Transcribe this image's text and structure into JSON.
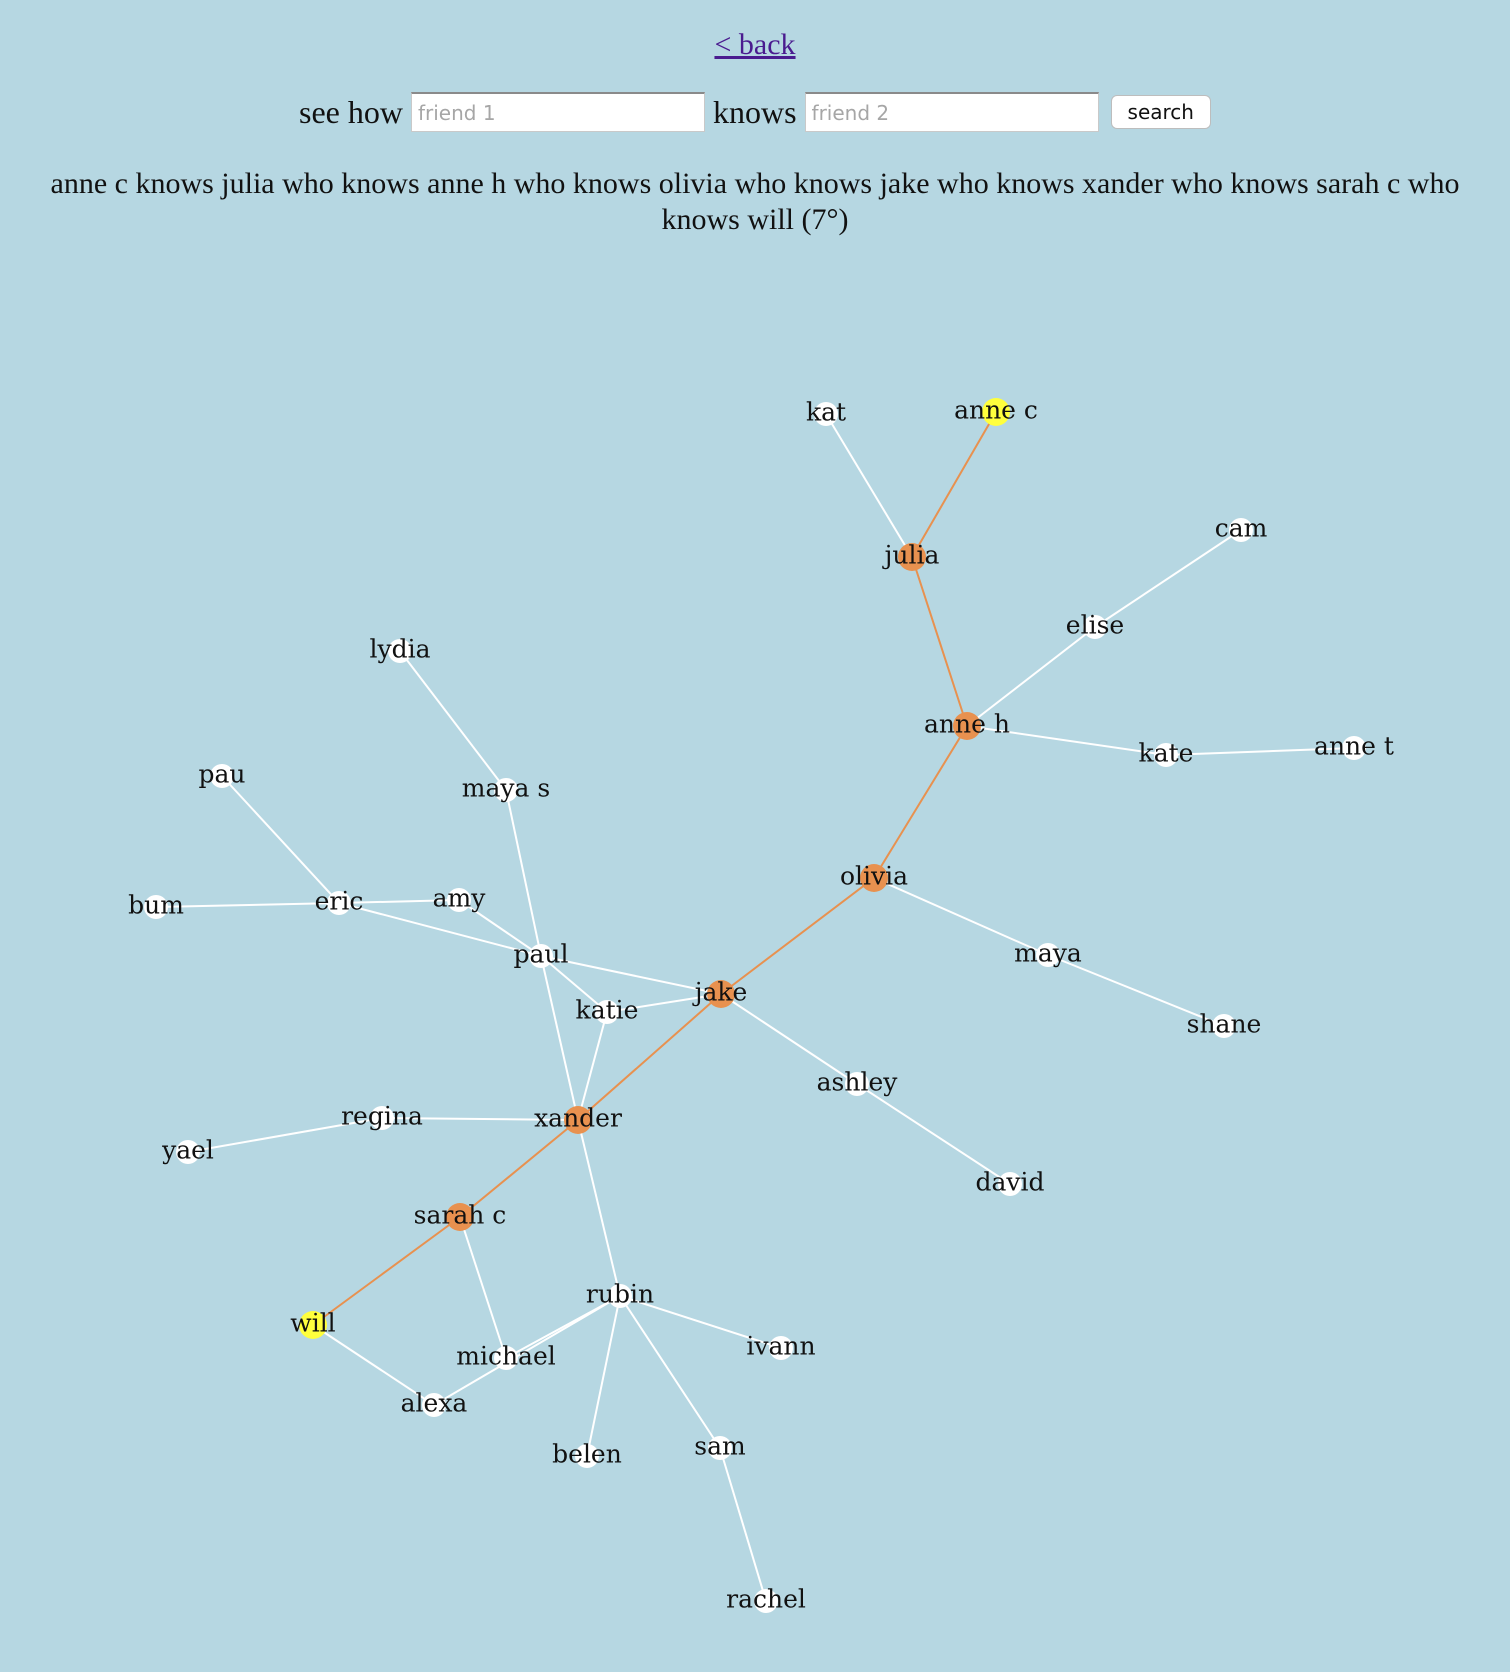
{
  "nav": {
    "back_label": "< back"
  },
  "search": {
    "prefix": "see how",
    "friend1_placeholder": "friend 1",
    "middle": "knows",
    "friend2_placeholder": "friend 2",
    "button_label": "search"
  },
  "result": {
    "text": "anne c knows julia who knows anne h who knows olivia who knows jake who knows xander who knows sarah c who knows will (7°)"
  },
  "colors": {
    "background": "#b6d7e2",
    "node_default": "#ffffff",
    "node_path": "#e8914f",
    "node_endpoint": "#ffff3d",
    "edge_default": "#ffffff",
    "edge_path": "#e8914f",
    "link": "#4a1b8f"
  },
  "graph": {
    "nodes": [
      {
        "id": "kat",
        "label": "kat",
        "status": "default"
      },
      {
        "id": "anne c",
        "label": "anne c",
        "status": "endpoint"
      },
      {
        "id": "julia",
        "label": "julia",
        "status": "path"
      },
      {
        "id": "cam",
        "label": "cam",
        "status": "default"
      },
      {
        "id": "elise",
        "label": "elise",
        "status": "default"
      },
      {
        "id": "anne h",
        "label": "anne h",
        "status": "path"
      },
      {
        "id": "kate",
        "label": "kate",
        "status": "default"
      },
      {
        "id": "anne t",
        "label": "anne t",
        "status": "default"
      },
      {
        "id": "lydia",
        "label": "lydia",
        "status": "default"
      },
      {
        "id": "pau",
        "label": "pau",
        "status": "default"
      },
      {
        "id": "maya s",
        "label": "maya s",
        "status": "default"
      },
      {
        "id": "olivia",
        "label": "olivia",
        "status": "path"
      },
      {
        "id": "bum",
        "label": "bum",
        "status": "default"
      },
      {
        "id": "eric",
        "label": "eric",
        "status": "default"
      },
      {
        "id": "amy",
        "label": "amy",
        "status": "default"
      },
      {
        "id": "maya",
        "label": "maya",
        "status": "default"
      },
      {
        "id": "paul",
        "label": "paul",
        "status": "default"
      },
      {
        "id": "jake",
        "label": "jake",
        "status": "path"
      },
      {
        "id": "katie",
        "label": "katie",
        "status": "default"
      },
      {
        "id": "shane",
        "label": "shane",
        "status": "default"
      },
      {
        "id": "ashley",
        "label": "ashley",
        "status": "default"
      },
      {
        "id": "regina",
        "label": "regina",
        "status": "default"
      },
      {
        "id": "xander",
        "label": "xander",
        "status": "path"
      },
      {
        "id": "yael",
        "label": "yael",
        "status": "default"
      },
      {
        "id": "david",
        "label": "david",
        "status": "default"
      },
      {
        "id": "sarah c",
        "label": "sarah c",
        "status": "path"
      },
      {
        "id": "rubin",
        "label": "rubin",
        "status": "default"
      },
      {
        "id": "will",
        "label": "will",
        "status": "endpoint"
      },
      {
        "id": "ivann",
        "label": "ivann",
        "status": "default"
      },
      {
        "id": "michael",
        "label": "michael",
        "status": "default"
      },
      {
        "id": "alexa",
        "label": "alexa",
        "status": "default"
      },
      {
        "id": "belen",
        "label": "belen",
        "status": "default"
      },
      {
        "id": "sam",
        "label": "sam",
        "status": "default"
      },
      {
        "id": "rachel",
        "label": "rachel",
        "status": "default"
      }
    ],
    "edges": [
      {
        "source": "kat",
        "target": "julia",
        "on_path": false
      },
      {
        "source": "anne c",
        "target": "julia",
        "on_path": true
      },
      {
        "source": "julia",
        "target": "anne h",
        "on_path": true
      },
      {
        "source": "cam",
        "target": "elise",
        "on_path": false
      },
      {
        "source": "elise",
        "target": "anne h",
        "on_path": false
      },
      {
        "source": "anne h",
        "target": "kate",
        "on_path": false
      },
      {
        "source": "kate",
        "target": "anne t",
        "on_path": false
      },
      {
        "source": "anne h",
        "target": "olivia",
        "on_path": true
      },
      {
        "source": "lydia",
        "target": "maya s",
        "on_path": false
      },
      {
        "source": "maya s",
        "target": "paul",
        "on_path": false
      },
      {
        "source": "pau",
        "target": "eric",
        "on_path": false
      },
      {
        "source": "bum",
        "target": "eric",
        "on_path": false
      },
      {
        "source": "eric",
        "target": "amy",
        "on_path": false
      },
      {
        "source": "eric",
        "target": "paul",
        "on_path": false
      },
      {
        "source": "amy",
        "target": "paul",
        "on_path": false
      },
      {
        "source": "paul",
        "target": "jake",
        "on_path": false
      },
      {
        "source": "paul",
        "target": "katie",
        "on_path": false
      },
      {
        "source": "paul",
        "target": "xander",
        "on_path": false
      },
      {
        "source": "katie",
        "target": "jake",
        "on_path": false
      },
      {
        "source": "katie",
        "target": "xander",
        "on_path": false
      },
      {
        "source": "olivia",
        "target": "jake",
        "on_path": true
      },
      {
        "source": "olivia",
        "target": "maya",
        "on_path": false
      },
      {
        "source": "maya",
        "target": "shane",
        "on_path": false
      },
      {
        "source": "jake",
        "target": "ashley",
        "on_path": false
      },
      {
        "source": "ashley",
        "target": "david",
        "on_path": false
      },
      {
        "source": "jake",
        "target": "xander",
        "on_path": true
      },
      {
        "source": "regina",
        "target": "xander",
        "on_path": false
      },
      {
        "source": "yael",
        "target": "regina",
        "on_path": false
      },
      {
        "source": "xander",
        "target": "sarah c",
        "on_path": true
      },
      {
        "source": "xander",
        "target": "rubin",
        "on_path": false
      },
      {
        "source": "sarah c",
        "target": "will",
        "on_path": true
      },
      {
        "source": "sarah c",
        "target": "michael",
        "on_path": false
      },
      {
        "source": "will",
        "target": "alexa",
        "on_path": false
      },
      {
        "source": "alexa",
        "target": "rubin",
        "on_path": false
      },
      {
        "source": "michael",
        "target": "rubin",
        "on_path": false
      },
      {
        "source": "rubin",
        "target": "ivann",
        "on_path": false
      },
      {
        "source": "rubin",
        "target": "belen",
        "on_path": false
      },
      {
        "source": "rubin",
        "target": "sam",
        "on_path": false
      },
      {
        "source": "sam",
        "target": "rachel",
        "on_path": false
      }
    ]
  }
}
